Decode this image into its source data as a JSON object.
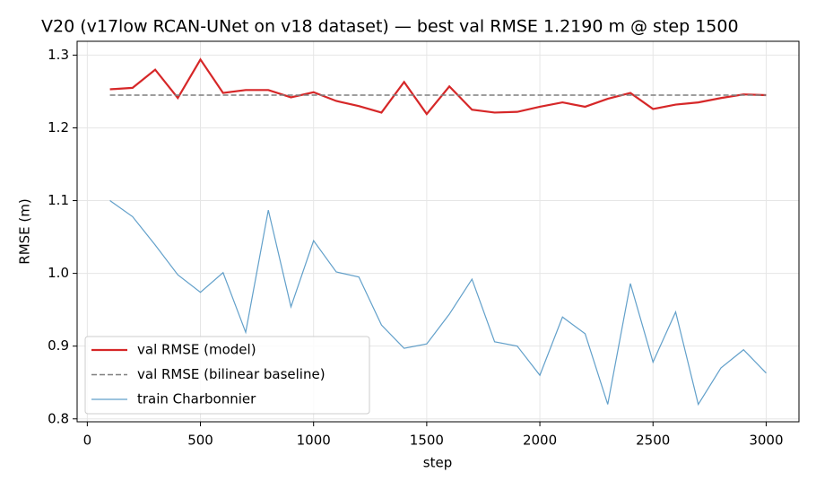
{
  "chart_data": {
    "type": "line",
    "title": "V20 (v17low RCAN-UNet on v18 dataset) — best val RMSE 1.2190 m @ step 1500",
    "x_label": "step",
    "y_label": "RMSE (m)",
    "x": [
      100,
      200,
      300,
      400,
      500,
      600,
      700,
      800,
      900,
      1000,
      1100,
      1200,
      1300,
      1400,
      1500,
      1600,
      1700,
      1800,
      1900,
      2000,
      2100,
      2200,
      2300,
      2400,
      2500,
      2600,
      2700,
      2800,
      2900,
      3000
    ],
    "series": [
      {
        "name": "val RMSE (model)",
        "color": "#d62728",
        "style": "solid",
        "values": [
          1.253,
          1.255,
          1.28,
          1.241,
          1.294,
          1.248,
          1.252,
          1.252,
          1.242,
          1.249,
          1.237,
          1.23,
          1.221,
          1.263,
          1.219,
          1.257,
          1.225,
          1.221,
          1.222,
          1.229,
          1.235,
          1.229,
          1.24,
          1.248,
          1.226,
          1.232,
          1.235,
          1.241,
          1.246,
          1.245
        ]
      },
      {
        "name": "val RMSE (bilinear baseline)",
        "color": "#7f7f7f",
        "style": "dashed",
        "values": [
          1.245,
          1.245,
          1.245,
          1.245,
          1.245,
          1.245,
          1.245,
          1.245,
          1.245,
          1.245,
          1.245,
          1.245,
          1.245,
          1.245,
          1.245,
          1.245,
          1.245,
          1.245,
          1.245,
          1.245,
          1.245,
          1.245,
          1.245,
          1.245,
          1.245,
          1.245,
          1.245,
          1.245,
          1.245,
          1.245
        ]
      },
      {
        "name": "train Charbonnier",
        "color": "#1f77b4",
        "style": "thin",
        "values": [
          1.1,
          1.078,
          1.039,
          0.998,
          0.974,
          1.001,
          0.919,
          1.087,
          0.954,
          1.045,
          1.002,
          0.995,
          0.929,
          0.897,
          0.903,
          0.944,
          0.992,
          0.906,
          0.9,
          0.86,
          0.94,
          0.917,
          0.82,
          0.986,
          0.878,
          0.947,
          0.82,
          0.87,
          0.895,
          0.863
        ]
      }
    ],
    "xlim": [
      -45,
      3145
    ],
    "xticks": [
      0,
      500,
      1000,
      1500,
      2000,
      2500,
      3000
    ],
    "ylim": [
      0.796,
      1.319
    ],
    "yticks": [
      0.8,
      0.9,
      {
        "value": 1,
        "label": "1.0"
      },
      1.1,
      1.2,
      1.3
    ],
    "grid": true,
    "legend": "lower left"
  }
}
